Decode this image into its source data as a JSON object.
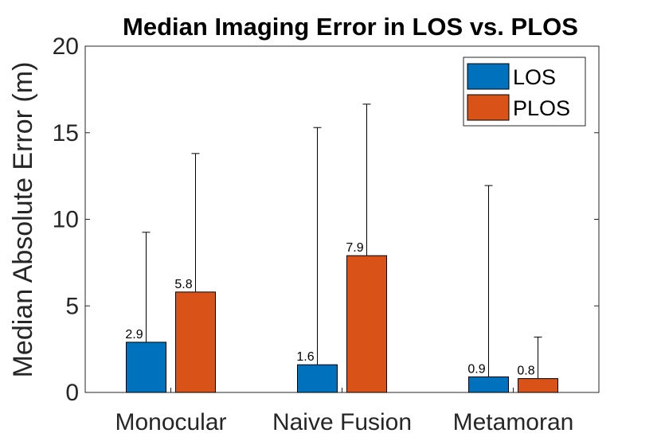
{
  "chart_data": {
    "type": "bar",
    "title": "Median Imaging Error in LOS vs. PLOS",
    "xlabel": "",
    "ylabel": "Median Absolute Error (m)",
    "ylim": [
      0,
      20
    ],
    "yticks": [
      0,
      5,
      10,
      15,
      20
    ],
    "categories": [
      "Monocular",
      "Naive Fusion",
      "Metamoran"
    ],
    "series": [
      {
        "name": "LOS",
        "color": "#0072BD",
        "values": [
          2.9,
          1.6,
          0.9
        ],
        "labels": [
          "2.9",
          "1.6",
          "0.9"
        ],
        "error_upper": [
          9.25,
          15.3,
          11.95
        ]
      },
      {
        "name": "PLOS",
        "color": "#D95319",
        "values": [
          5.8,
          7.9,
          0.8
        ],
        "labels": [
          "5.8",
          "7.9",
          "0.8"
        ],
        "error_upper": [
          13.8,
          16.65,
          3.2
        ]
      }
    ],
    "legend_position": "top-right",
    "grid": false
  }
}
